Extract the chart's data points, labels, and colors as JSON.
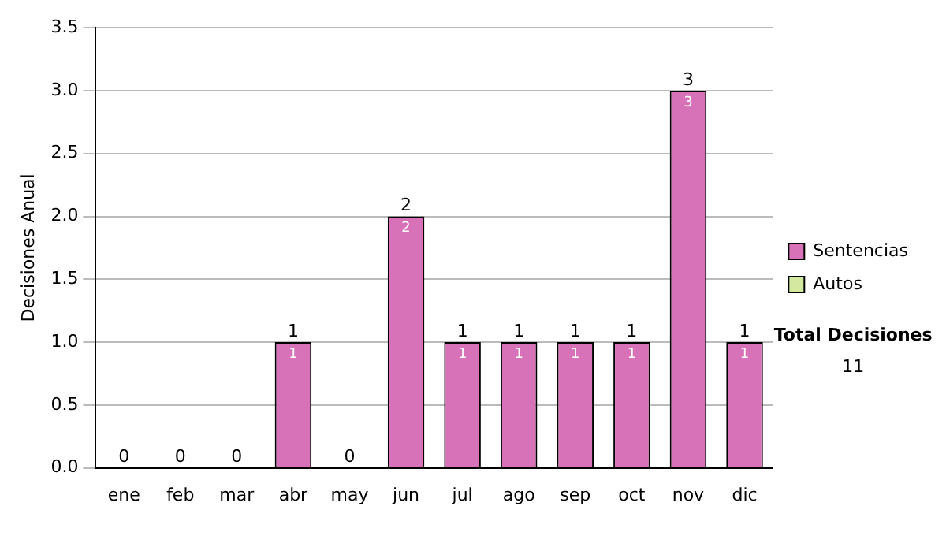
{
  "chart_data": {
    "type": "bar",
    "stacked": true,
    "ylabel": "Decisiones Anual",
    "categories": [
      "ene",
      "feb",
      "mar",
      "abr",
      "may",
      "jun",
      "jul",
      "ago",
      "sep",
      "oct",
      "nov",
      "dic"
    ],
    "series": [
      {
        "name": "Sentencias",
        "color": "#d772b9",
        "values": [
          0,
          0,
          0,
          1,
          0,
          2,
          1,
          1,
          1,
          1,
          3,
          1
        ],
        "value_labels": [
          null,
          null,
          null,
          "1",
          null,
          "2",
          "1",
          "1",
          "1",
          "1",
          "3",
          "1"
        ]
      },
      {
        "name": "Autos",
        "color": "#d4e8a0",
        "values": [
          0,
          0,
          0,
          0,
          0,
          0,
          0,
          0,
          0,
          0,
          0,
          0
        ]
      }
    ],
    "totals": [
      "0",
      "0",
      "0",
      "1",
      "0",
      "2",
      "1",
      "1",
      "1",
      "1",
      "3",
      "1"
    ],
    "ylim": [
      0,
      3.5
    ],
    "yticks": [
      {
        "value": 0,
        "label": "0.0"
      },
      {
        "value": 0.5,
        "label": "0.5"
      },
      {
        "value": 1,
        "label": "1.0"
      },
      {
        "value": 1.5,
        "label": "1.5"
      },
      {
        "value": 2,
        "label": "2.0"
      },
      {
        "value": 2.5,
        "label": "2.5"
      },
      {
        "value": 3,
        "label": "3.0"
      },
      {
        "value": 3.5,
        "label": "3.5"
      }
    ],
    "grid": "y",
    "legend": "right",
    "annotations": [
      "Total Decisiones",
      "11"
    ]
  }
}
